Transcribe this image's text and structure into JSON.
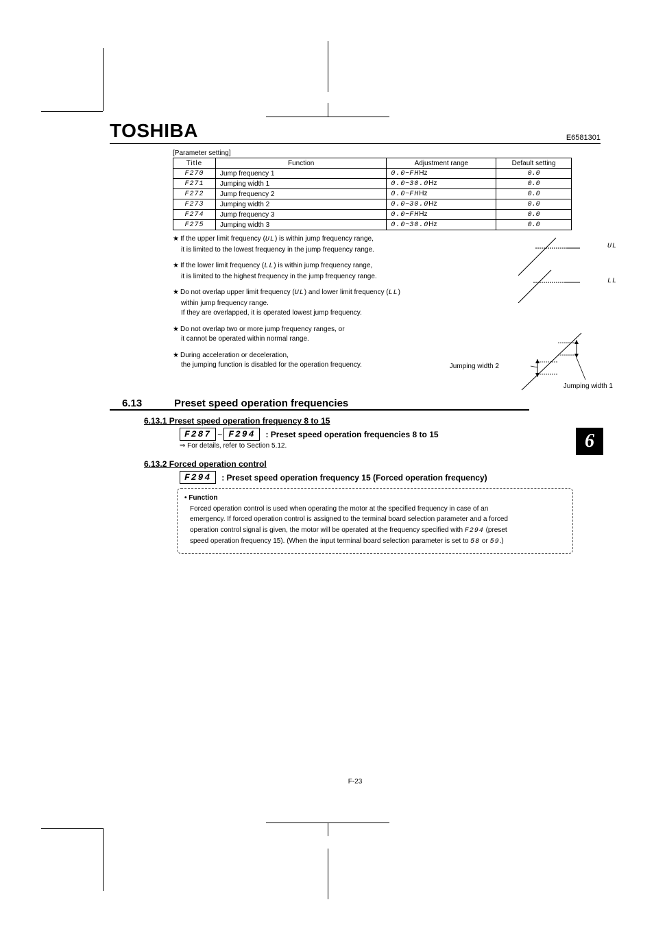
{
  "header": {
    "brand": "TOSHIBA",
    "docnum": "E6581301"
  },
  "table": {
    "caption": "[Parameter setting]",
    "headers": {
      "title": "Title",
      "function": "Function",
      "range": "Adjustment range",
      "default": "Default setting"
    },
    "rows": [
      {
        "title": "F270",
        "func": "Jump frequency 1",
        "range_a": "0.0",
        "range_b": "FH",
        "range_unit": "Hz",
        "def": "0.0"
      },
      {
        "title": "F271",
        "func": "Jumping width 1",
        "range_a": "0.0",
        "range_b": "30.0",
        "range_unit": "Hz",
        "def": "0.0"
      },
      {
        "title": "F272",
        "func": "Jump frequency 2",
        "range_a": "0.0",
        "range_b": "FH",
        "range_unit": "Hz",
        "def": "0.0"
      },
      {
        "title": "F273",
        "func": "Jumping width 2",
        "range_a": "0.0",
        "range_b": "30.0",
        "range_unit": "Hz",
        "def": "0.0"
      },
      {
        "title": "F274",
        "func": "Jump frequency 3",
        "range_a": "0.0",
        "range_b": "FH",
        "range_unit": "Hz",
        "def": "0.0"
      },
      {
        "title": "F275",
        "func": "Jumping width 3",
        "range_a": "0.0",
        "range_b": "30.0",
        "range_unit": "Hz",
        "def": "0.0"
      }
    ]
  },
  "notes": {
    "n1a": "If the upper limit frequency (",
    "n1code": "UL",
    "n1b": ") is within jump frequency range,",
    "n1c": "it is limited to the lowest frequency in the jump frequency range.",
    "n2a": "If the lower limit frequency (",
    "n2code": "LL",
    "n2b": ") is within jump frequency range,",
    "n2c": "it is limited to the highest frequency in the jump frequency range.",
    "n3a": "Do not overlap upper limit frequency (",
    "n3code1": "UL",
    "n3b": ") and lower limit frequency (",
    "n3code2": "LL",
    "n3c": ")",
    "n3d": "within jump frequency range.",
    "n3e": "If they are overlapped, it is operated lowest jump frequency.",
    "n4a": "Do not overlap two or more jump frequency ranges, or",
    "n4b": "it cannot be operated within normal range.",
    "n5a": "During acceleration or deceleration,",
    "n5b": "the jumping function is disabled for the operation frequency."
  },
  "diag": {
    "ul": "UL",
    "ll": "LL",
    "jw1": "Jumping width 1",
    "jw2": "Jumping width 2"
  },
  "section": {
    "num": "6.13",
    "title": "Preset speed operation frequencies",
    "chapter": "6"
  },
  "sub1": {
    "head": "6.13.1 Preset speed operation frequency 8 to 15",
    "code_from": "F287",
    "tilde": "~",
    "code_to": "F294",
    "desc": ": Preset speed operation frequencies 8 to 15",
    "ref_arrow": "⇒",
    "ref": " For details, refer to Section 5.12."
  },
  "sub2": {
    "head": "6.13.2 Forced operation control",
    "code": "F294",
    "desc": ": Preset speed operation frequency 15 (Forced operation frequency)"
  },
  "funcbox": {
    "title": "• Function",
    "l1": "Forced operation control is used when operating the motor at the specified frequency in case of an",
    "l2a": "emergency. If forced operation control is assigned to the terminal board selection parameter and a forced",
    "l3a": "operation control signal is given, the motor will be operated at the frequency specified with ",
    "l3code": "F294",
    "l3b": " (preset",
    "l4a": "speed operation frequency 15). (When the input terminal board selection parameter is set to ",
    "l4code1": "58",
    "l4b": " or ",
    "l4code2": "59",
    "l4c": ".)"
  },
  "footer": "F-23",
  "colors": {
    "text": "#000000",
    "bg": "#ffffff",
    "dash": "#555555"
  }
}
